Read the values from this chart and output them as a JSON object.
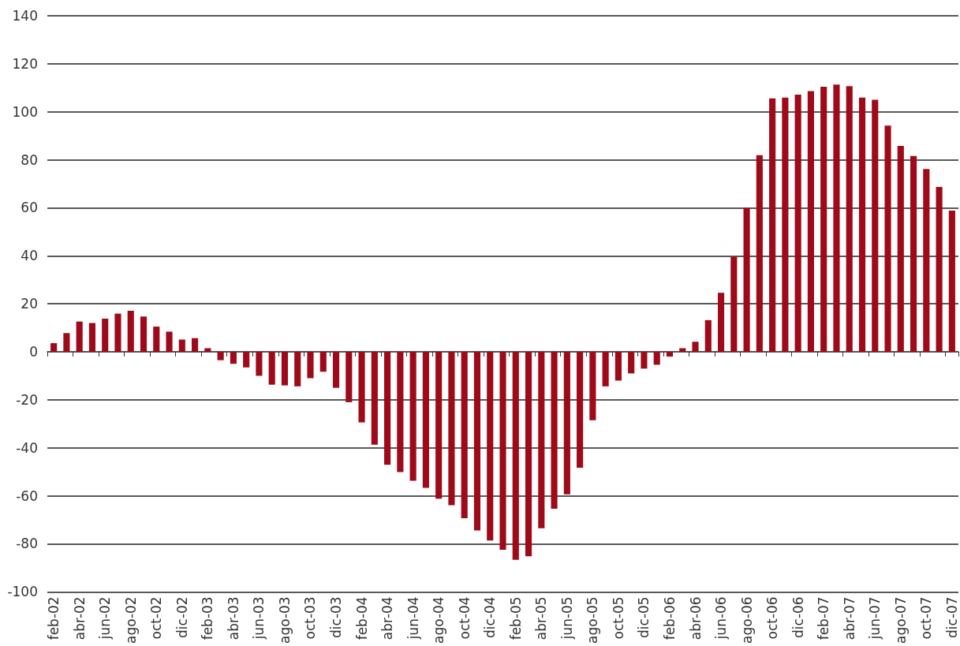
{
  "chart_data": {
    "type": "bar",
    "categories": [
      "feb-02",
      null,
      "abr-02",
      null,
      "jun-02",
      null,
      "ago-02",
      null,
      "oct-02",
      null,
      "dic-02",
      null,
      "feb-03",
      null,
      "abr-03",
      null,
      "jun-03",
      null,
      "ago-03",
      null,
      "oct-03",
      null,
      "dic-03",
      null,
      "feb-04",
      null,
      "abr-04",
      null,
      "jun-04",
      null,
      "ago-04",
      null,
      "oct-04",
      null,
      "dic-04",
      null,
      "feb-05",
      null,
      "abr-05",
      null,
      "jun-05",
      null,
      "ago-05",
      null,
      "oct-05",
      null,
      "dic-05",
      null,
      "feb-06",
      null,
      "abr-06",
      null,
      "jun-06",
      null,
      "ago-06",
      null,
      "oct-06",
      null,
      "dic-06",
      null,
      "feb-07",
      null,
      "abr-07",
      null,
      "jun-07",
      null,
      "ago-07",
      null,
      "oct-07",
      null,
      "dic-07"
    ],
    "values": [
      3.6,
      7.8,
      12.6,
      12,
      13.8,
      15.9,
      17.1,
      14.7,
      10.5,
      8.4,
      5.1,
      5.7,
      1.5,
      -3.5,
      -5,
      -6.5,
      -10,
      -13.7,
      -14,
      -14.4,
      -11,
      -8.3,
      -15,
      -21,
      -29.4,
      -38.7,
      -47.1,
      -50.1,
      -53.7,
      -56.7,
      -61.2,
      -63.9,
      -69.3,
      -74.4,
      -78.6,
      -82.5,
      -86.7,
      -85.2,
      -73.5,
      -65.4,
      -59.4,
      -48.3,
      -28.5,
      -14.4,
      -12,
      -9,
      -7,
      -5.4,
      -2,
      1.5,
      4.2,
      13.2,
      24.6,
      39.6,
      60,
      81.9,
      105.6,
      105.9,
      107.1,
      108.6,
      110.4,
      111.3,
      110.7,
      105.9,
      105,
      94.2,
      85.8,
      81.6,
      76.2,
      68.7,
      58.8
    ],
    "color": "#9e0a1a",
    "ylim": [
      -100,
      140
    ],
    "yticks": [
      -100,
      -80,
      -60,
      -40,
      -20,
      0,
      20,
      40,
      60,
      80,
      100,
      120,
      140
    ],
    "grid": "y"
  }
}
